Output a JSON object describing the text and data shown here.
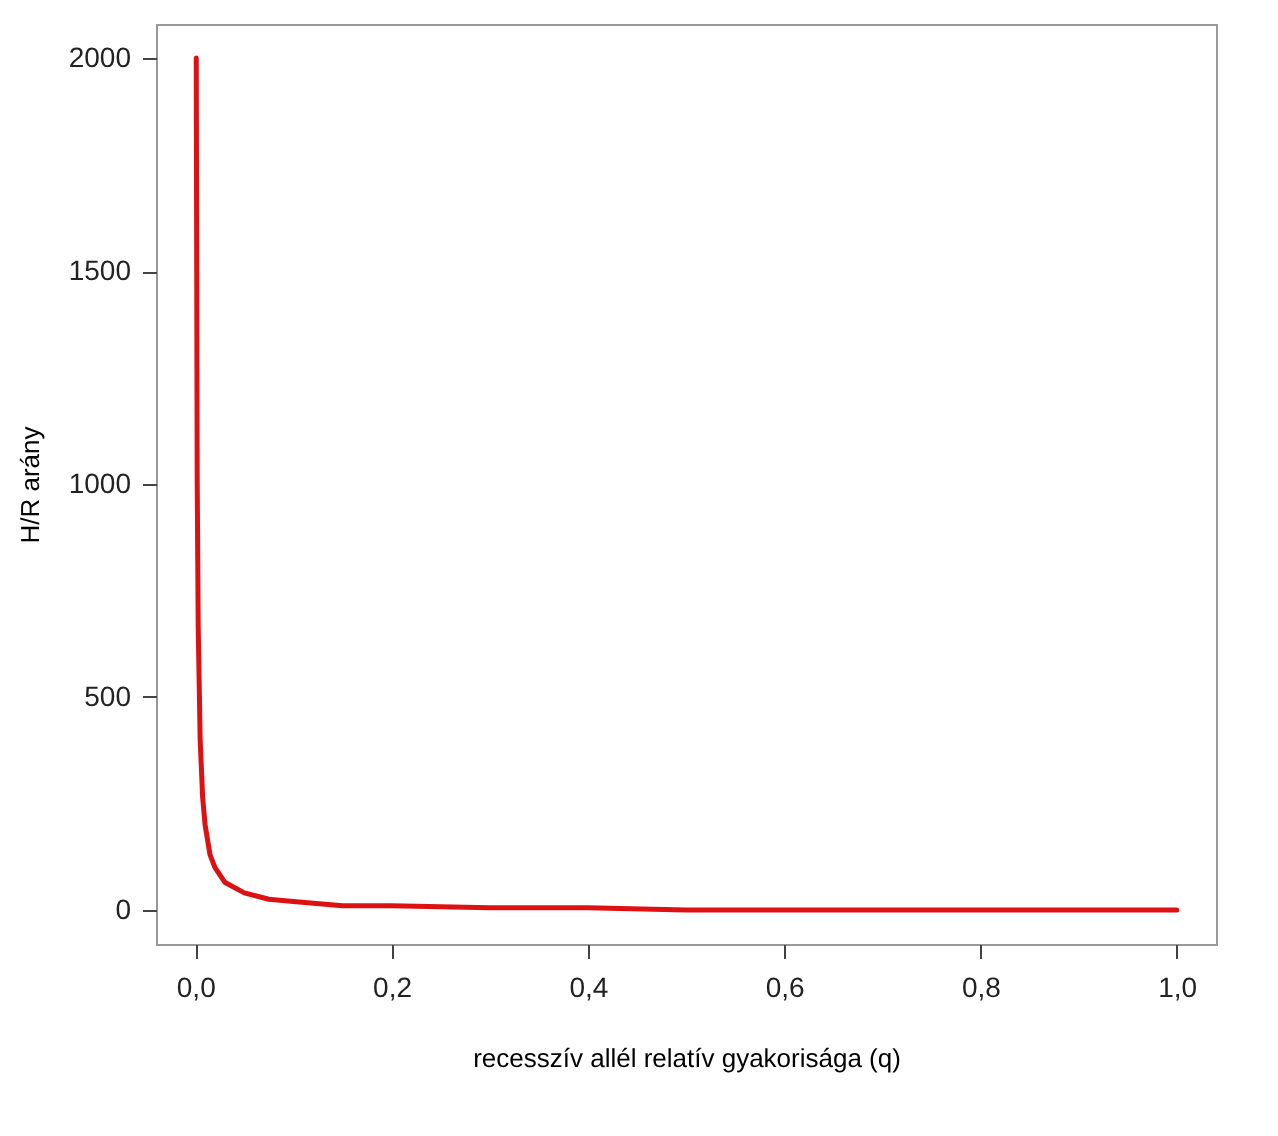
{
  "chart_data": {
    "type": "line",
    "xlabel": "recesszív allél relatív gyakorisága (q)",
    "ylabel": "H/R arány",
    "x": [
      0.001,
      0.002,
      0.003,
      0.005,
      0.0075,
      0.01,
      0.015,
      0.02,
      0.03,
      0.05,
      0.075,
      0.1,
      0.15,
      0.2,
      0.3,
      0.4,
      0.5,
      0.6,
      0.7,
      0.8,
      0.9,
      1.0
    ],
    "series": [
      {
        "color": "#dd1111",
        "values": [
          2000,
          1000,
          665,
          400,
          265,
          200,
          130,
          100,
          65,
          40,
          25,
          20,
          10,
          10,
          5,
          5,
          0,
          0,
          0,
          0,
          0,
          0
        ]
      }
    ],
    "xlim": [
      -0.04,
      1.04
    ],
    "ylim": [
      -80,
      2080
    ],
    "xticks": [
      {
        "value": 0,
        "label": "0,0"
      },
      {
        "value": 0.2,
        "label": "0,2"
      },
      {
        "value": 0.4,
        "label": "0,4"
      },
      {
        "value": 0.6,
        "label": "0,6"
      },
      {
        "value": 0.8,
        "label": "0,8"
      },
      {
        "value": 1,
        "label": "1,0"
      }
    ],
    "yticks": [
      0,
      500,
      1000,
      1500,
      2000
    ],
    "grid": false,
    "marker": "none",
    "line_style": "solid"
  }
}
